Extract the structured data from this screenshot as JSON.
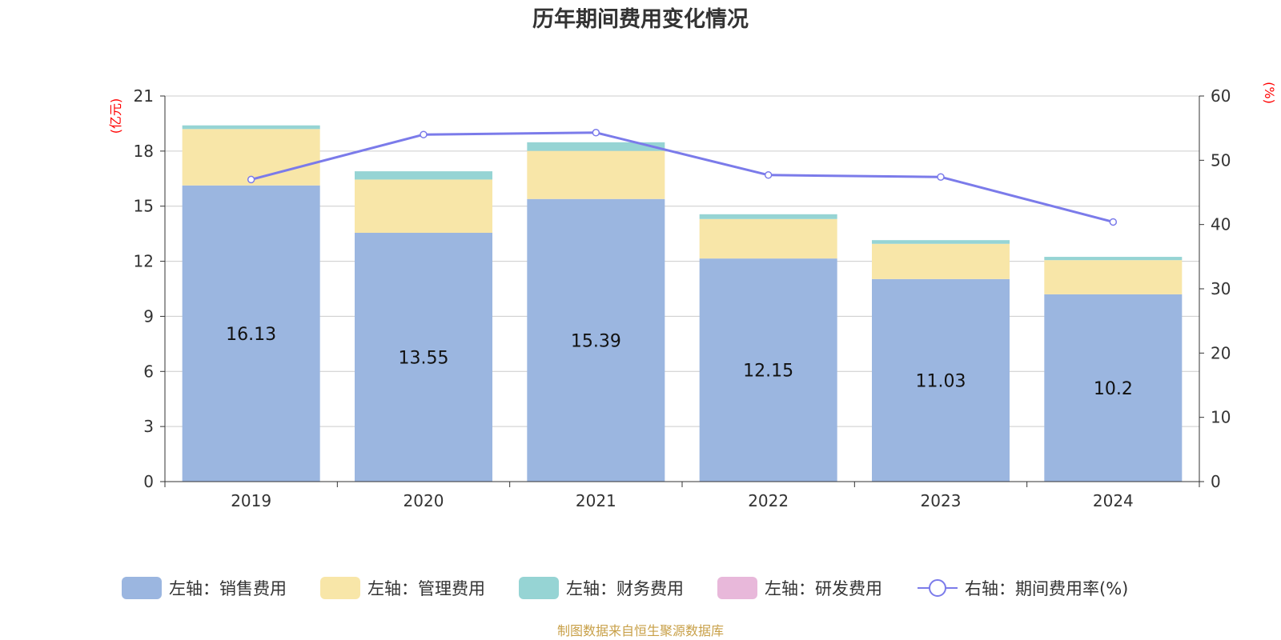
{
  "chart_data": {
    "type": "bar",
    "title": "历年期间费用变化情况",
    "categories": [
      "2019",
      "2020",
      "2021",
      "2022",
      "2023",
      "2024"
    ],
    "left_axis": {
      "unit": "(亿元)",
      "ylim": [
        0,
        21
      ],
      "ticks": [
        0,
        3,
        6,
        9,
        12,
        15,
        18,
        21
      ]
    },
    "right_axis": {
      "unit": "(%)",
      "ylim": [
        0,
        60
      ],
      "ticks": [
        0,
        10,
        20,
        30,
        40,
        50,
        60
      ]
    },
    "series": [
      {
        "name": "左轴：销售费用",
        "kind": "bar",
        "axis": "left",
        "color": "#9bb6e0",
        "values": [
          16.13,
          13.55,
          15.39,
          12.15,
          11.03,
          10.2
        ],
        "data_labels": [
          "16.13",
          "13.55",
          "15.39",
          "12.15",
          "11.03",
          "10.2"
        ]
      },
      {
        "name": "左轴：管理费用",
        "kind": "bar",
        "axis": "left",
        "color": "#f8e6a8",
        "values": [
          3.07,
          2.9,
          2.62,
          2.15,
          1.92,
          1.86
        ]
      },
      {
        "name": "左轴：财务费用",
        "kind": "bar",
        "axis": "left",
        "color": "#96d4d4",
        "values": [
          0.2,
          0.45,
          0.47,
          0.26,
          0.2,
          0.18
        ]
      },
      {
        "name": "左轴：研发费用",
        "kind": "bar",
        "axis": "left",
        "color": "#e8b8da",
        "values": [
          0,
          0,
          0,
          0,
          0,
          0
        ]
      },
      {
        "name": "右轴：期间费用率(%)",
        "kind": "line",
        "axis": "right",
        "color": "#7b7bea",
        "values": [
          47.0,
          54.0,
          54.3,
          47.7,
          47.4,
          40.4
        ]
      }
    ],
    "grid": true,
    "legend_position": "bottom"
  },
  "source_note": "制图数据来自恒生聚源数据库"
}
